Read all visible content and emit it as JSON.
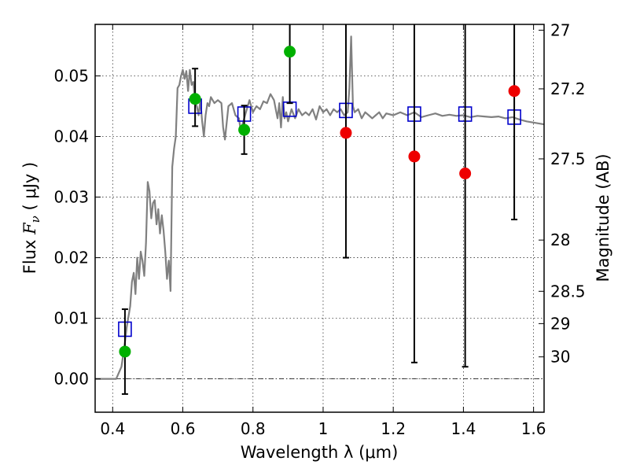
{
  "chart_data": {
    "type": "scatter",
    "xlabel": "Wavelength  λ (μm)",
    "ylabel": {
      "prefix": "Flux ",
      "symbol": "F",
      "subscript": "ν",
      "suffix": " ( μJy )"
    },
    "y2label": "Magnitude (AB)",
    "xlim": [
      0.35,
      1.63
    ],
    "ylim": [
      -0.0055,
      0.0585
    ],
    "grid": true,
    "x_ticks": [
      {
        "value": 0.4,
        "label": "0.4"
      },
      {
        "value": 0.6,
        "label": "0.6"
      },
      {
        "value": 0.8,
        "label": "0.8"
      },
      {
        "value": 1.0,
        "label": "1"
      },
      {
        "value": 1.2,
        "label": "1.2"
      },
      {
        "value": 1.4,
        "label": "1.4"
      },
      {
        "value": 1.6,
        "label": "1.6"
      }
    ],
    "y_ticks": [
      {
        "value": 0.0,
        "label": "0.00"
      },
      {
        "value": 0.01,
        "label": "0.01"
      },
      {
        "value": 0.02,
        "label": "0.02"
      },
      {
        "value": 0.03,
        "label": "0.03"
      },
      {
        "value": 0.04,
        "label": "0.04"
      },
      {
        "value": 0.05,
        "label": "0.05"
      }
    ],
    "y2_ticks": [
      {
        "mag": 27,
        "label": "27"
      },
      {
        "mag": 27.2,
        "label": "27.2"
      },
      {
        "mag": 27.5,
        "label": "27.5"
      },
      {
        "mag": 28,
        "label": "28"
      },
      {
        "mag": 28.5,
        "label": "28.5"
      },
      {
        "mag": 29,
        "label": "29"
      },
      {
        "mag": 30,
        "label": "30"
      }
    ],
    "zero_line": 0.0,
    "colors": {
      "model": "#808080",
      "model_points": "#0000cc",
      "observed_green": "#00b000",
      "observed_red": "#ee0000",
      "errorbar": "#000000"
    },
    "model_spectrum": [
      [
        0.35,
        0.0
      ],
      [
        0.41,
        0.0
      ],
      [
        0.425,
        0.002
      ],
      [
        0.435,
        0.006
      ],
      [
        0.44,
        0.0085
      ],
      [
        0.45,
        0.012
      ],
      [
        0.455,
        0.016
      ],
      [
        0.46,
        0.0175
      ],
      [
        0.465,
        0.014
      ],
      [
        0.47,
        0.02
      ],
      [
        0.475,
        0.0165
      ],
      [
        0.48,
        0.021
      ],
      [
        0.485,
        0.0195
      ],
      [
        0.49,
        0.017
      ],
      [
        0.495,
        0.0225
      ],
      [
        0.5,
        0.0325
      ],
      [
        0.505,
        0.031
      ],
      [
        0.51,
        0.0265
      ],
      [
        0.515,
        0.029
      ],
      [
        0.52,
        0.0295
      ],
      [
        0.525,
        0.0255
      ],
      [
        0.53,
        0.028
      ],
      [
        0.535,
        0.024
      ],
      [
        0.54,
        0.027
      ],
      [
        0.545,
        0.0245
      ],
      [
        0.55,
        0.021
      ],
      [
        0.555,
        0.0165
      ],
      [
        0.56,
        0.0195
      ],
      [
        0.565,
        0.0145
      ],
      [
        0.57,
        0.035
      ],
      [
        0.575,
        0.038
      ],
      [
        0.58,
        0.04
      ],
      [
        0.585,
        0.048
      ],
      [
        0.59,
        0.0485
      ],
      [
        0.595,
        0.05
      ],
      [
        0.6,
        0.051
      ],
      [
        0.605,
        0.0495
      ],
      [
        0.61,
        0.0508
      ],
      [
        0.615,
        0.0475
      ],
      [
        0.62,
        0.051
      ],
      [
        0.625,
        0.0485
      ],
      [
        0.63,
        0.049
      ],
      [
        0.635,
        0.0455
      ],
      [
        0.64,
        0.045
      ],
      [
        0.645,
        0.0435
      ],
      [
        0.65,
        0.046
      ],
      [
        0.655,
        0.0425
      ],
      [
        0.66,
        0.04
      ],
      [
        0.665,
        0.0435
      ],
      [
        0.67,
        0.0455
      ],
      [
        0.675,
        0.045
      ],
      [
        0.68,
        0.0465
      ],
      [
        0.69,
        0.0455
      ],
      [
        0.7,
        0.046
      ],
      [
        0.71,
        0.0455
      ],
      [
        0.715,
        0.0415
      ],
      [
        0.72,
        0.0395
      ],
      [
        0.73,
        0.045
      ],
      [
        0.74,
        0.0455
      ],
      [
        0.75,
        0.0435
      ],
      [
        0.76,
        0.043
      ],
      [
        0.765,
        0.041
      ],
      [
        0.77,
        0.042
      ],
      [
        0.78,
        0.044
      ],
      [
        0.79,
        0.046
      ],
      [
        0.8,
        0.044
      ],
      [
        0.81,
        0.045
      ],
      [
        0.82,
        0.0445
      ],
      [
        0.83,
        0.0458
      ],
      [
        0.84,
        0.0455
      ],
      [
        0.85,
        0.047
      ],
      [
        0.86,
        0.046
      ],
      [
        0.865,
        0.0445
      ],
      [
        0.87,
        0.043
      ],
      [
        0.875,
        0.0455
      ],
      [
        0.88,
        0.0415
      ],
      [
        0.885,
        0.0465
      ],
      [
        0.89,
        0.043
      ],
      [
        0.895,
        0.044
      ],
      [
        0.9,
        0.0425
      ],
      [
        0.91,
        0.0445
      ],
      [
        0.92,
        0.043
      ],
      [
        0.93,
        0.0445
      ],
      [
        0.94,
        0.0435
      ],
      [
        0.95,
        0.044
      ],
      [
        0.96,
        0.0435
      ],
      [
        0.97,
        0.0445
      ],
      [
        0.98,
        0.0428
      ],
      [
        0.99,
        0.045
      ],
      [
        1.0,
        0.044
      ],
      [
        1.01,
        0.0445
      ],
      [
        1.02,
        0.0435
      ],
      [
        1.03,
        0.0445
      ],
      [
        1.04,
        0.044
      ],
      [
        1.05,
        0.0445
      ],
      [
        1.06,
        0.0435
      ],
      [
        1.07,
        0.044
      ],
      [
        1.075,
        0.048
      ],
      [
        1.08,
        0.0565
      ],
      [
        1.085,
        0.045
      ],
      [
        1.09,
        0.044
      ],
      [
        1.1,
        0.0445
      ],
      [
        1.11,
        0.043
      ],
      [
        1.12,
        0.044
      ],
      [
        1.13,
        0.0435
      ],
      [
        1.14,
        0.043
      ],
      [
        1.15,
        0.0435
      ],
      [
        1.16,
        0.044
      ],
      [
        1.17,
        0.043
      ],
      [
        1.18,
        0.0438
      ],
      [
        1.2,
        0.0435
      ],
      [
        1.22,
        0.044
      ],
      [
        1.24,
        0.0435
      ],
      [
        1.26,
        0.044
      ],
      [
        1.28,
        0.0432
      ],
      [
        1.3,
        0.0435
      ],
      [
        1.32,
        0.0438
      ],
      [
        1.34,
        0.0434
      ],
      [
        1.36,
        0.0436
      ],
      [
        1.38,
        0.0434
      ],
      [
        1.4,
        0.0435
      ],
      [
        1.42,
        0.0432
      ],
      [
        1.44,
        0.0434
      ],
      [
        1.46,
        0.0433
      ],
      [
        1.48,
        0.0432
      ],
      [
        1.5,
        0.0433
      ],
      [
        1.52,
        0.043
      ],
      [
        1.54,
        0.0432
      ],
      [
        1.56,
        0.0428
      ],
      [
        1.58,
        0.0425
      ],
      [
        1.6,
        0.0423
      ],
      [
        1.63,
        0.042
      ]
    ],
    "model_photometry": [
      {
        "x": 0.435,
        "y": 0.0082
      },
      {
        "x": 0.635,
        "y": 0.045
      },
      {
        "x": 0.775,
        "y": 0.0437
      },
      {
        "x": 0.905,
        "y": 0.0445
      },
      {
        "x": 1.065,
        "y": 0.0443
      },
      {
        "x": 1.26,
        "y": 0.0437
      },
      {
        "x": 1.405,
        "y": 0.0437
      },
      {
        "x": 1.545,
        "y": 0.0432
      }
    ],
    "observed_photometry": [
      {
        "x": 0.435,
        "y": 0.0045,
        "yerr_low": 0.007,
        "yerr_high": 0.007,
        "color": "green"
      },
      {
        "x": 0.635,
        "y": 0.0462,
        "yerr_low": 0.0045,
        "yerr_high": 0.005,
        "color": "green"
      },
      {
        "x": 0.775,
        "y": 0.0411,
        "yerr_low": 0.004,
        "yerr_high": 0.004,
        "color": "green"
      },
      {
        "x": 0.905,
        "y": 0.054,
        "yerr_low": 0.0085,
        "yerr_high": 0.01,
        "color": "green"
      },
      {
        "x": 1.065,
        "y": 0.0406,
        "yerr_low": 0.0206,
        "yerr_high": 0.02,
        "color": "red"
      },
      {
        "x": 1.26,
        "y": 0.0367,
        "yerr_low": 0.034,
        "yerr_high": 0.025,
        "color": "red"
      },
      {
        "x": 1.405,
        "y": 0.0339,
        "yerr_low": 0.0319,
        "yerr_high": 0.025,
        "color": "red"
      },
      {
        "x": 1.545,
        "y": 0.0475,
        "yerr_low": 0.0212,
        "yerr_high": 0.02,
        "color": "red"
      }
    ]
  }
}
